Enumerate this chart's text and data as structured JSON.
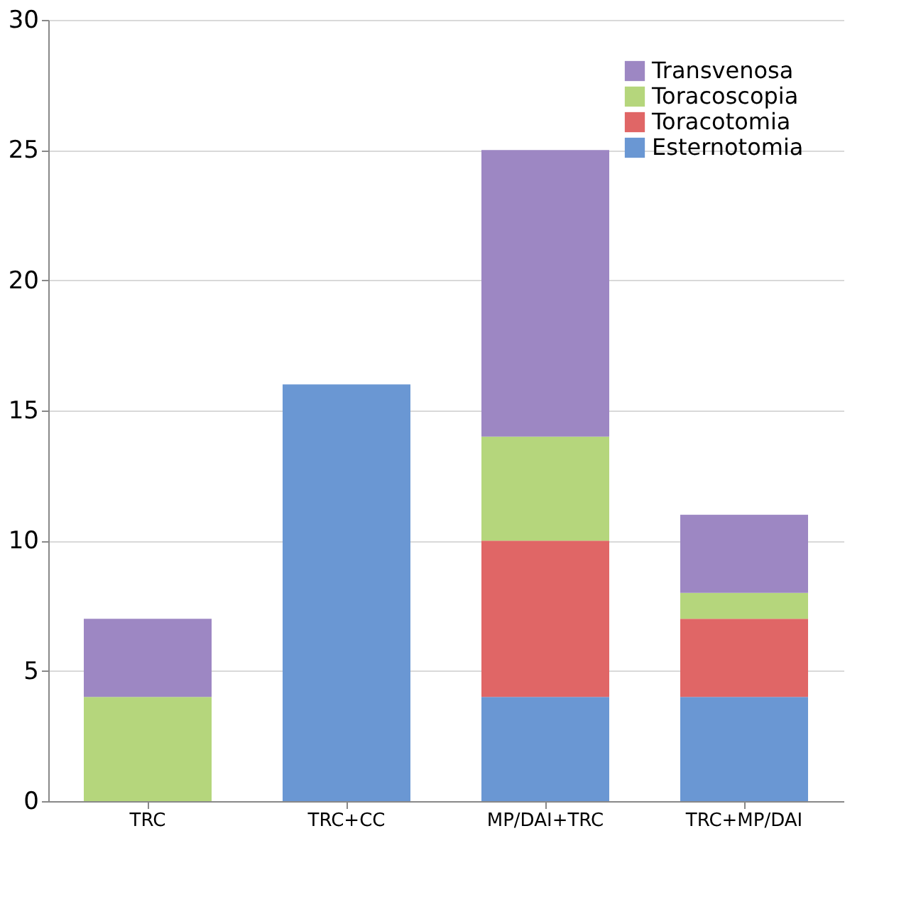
{
  "chart_data": {
    "type": "bar",
    "stacked": true,
    "categories": [
      "TRC",
      "TRC+CC",
      "MP/DAI+TRC",
      "TRC+MP/DAI"
    ],
    "series": [
      {
        "name": "Esternotomia",
        "color": "#6a97d3",
        "values": [
          null,
          16,
          4,
          4
        ]
      },
      {
        "name": "Toracotomia",
        "color": "#e06666",
        "values": [
          null,
          null,
          6,
          3
        ]
      },
      {
        "name": "Toracoscopia",
        "color": "#b5d67c",
        "values": [
          4,
          null,
          4,
          1
        ]
      },
      {
        "name": "Transvenosa",
        "color": "#9d87c3",
        "values": [
          3,
          null,
          11,
          3
        ]
      }
    ],
    "ylim": [
      0,
      30
    ],
    "yticks": [
      0,
      5,
      10,
      15,
      20,
      25,
      30
    ],
    "grid": "y",
    "legend": "top right"
  }
}
